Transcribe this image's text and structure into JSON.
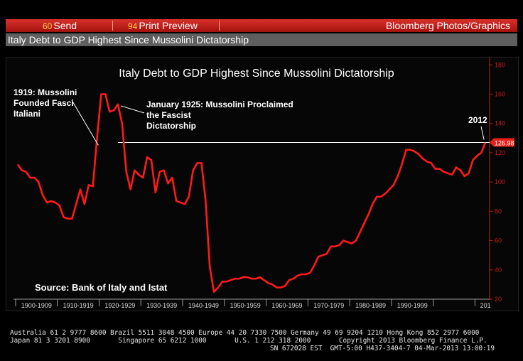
{
  "toolbar": {
    "send_num": "60",
    "send_label": "Send",
    "print_num": "94",
    "print_label": "Print Preview",
    "brand": "Bloomberg Photos/Graphics"
  },
  "window_title": "Italy Debt to GDP Highest Since Mussolini Dictatorship",
  "chart_data": {
    "type": "line",
    "title": "Italy Debt to GDP Highest Since Mussolini Dictatorship",
    "xlabel": "",
    "ylabel": "",
    "xlim": [
      1899,
      2013
    ],
    "ylim": [
      20,
      185
    ],
    "yticks": [
      20,
      40,
      60,
      80,
      100,
      120,
      140,
      160,
      180
    ],
    "x_tick_labels": [
      "1900-1909",
      "1910-1919",
      "1920-1929",
      "1930-1939",
      "1940-1949",
      "1950-1959",
      "1960-1969",
      "1970-1979",
      "1980-1989",
      "1990-1999",
      "201"
    ],
    "grid": false,
    "line_color": "#ff1a1a",
    "reference_line": {
      "value": 126.98,
      "label": "126.98",
      "color": "#ffffff"
    },
    "series": [
      {
        "x": [
          1900,
          1901,
          1902,
          1903,
          1904,
          1905,
          1906,
          1907,
          1908,
          1909,
          1910,
          1911,
          1912,
          1913,
          1914,
          1915,
          1916,
          1917,
          1918,
          1919,
          1920,
          1921,
          1922,
          1923,
          1924,
          1925,
          1926,
          1927,
          1928,
          1929,
          1930,
          1931,
          1932,
          1933,
          1934,
          1935,
          1936,
          1937,
          1938,
          1939,
          1940,
          1941,
          1942,
          1943,
          1944,
          1945,
          1946,
          1947,
          1948,
          1949,
          1950,
          1951,
          1952,
          1953,
          1954,
          1955,
          1956,
          1957,
          1958,
          1959,
          1960,
          1961,
          1962,
          1963,
          1964,
          1965,
          1966,
          1967,
          1968,
          1969,
          1970,
          1971,
          1972,
          1973,
          1974,
          1975,
          1976,
          1977,
          1978,
          1979,
          1980,
          1981,
          1982,
          1983,
          1984,
          1985,
          1986,
          1987,
          1988,
          1989,
          1990,
          1991,
          1992,
          1993,
          1994,
          1995,
          1996,
          1997,
          1998,
          1999,
          2000,
          2001,
          2002,
          2003,
          2004,
          2005,
          2006,
          2007,
          2008,
          2009,
          2010,
          2011,
          2012
        ],
        "values": [
          112,
          108,
          107,
          103,
          103,
          100,
          91,
          86,
          87,
          86,
          84,
          76,
          75,
          75,
          85,
          95,
          85,
          98,
          97,
          130,
          160,
          160,
          148,
          149,
          153,
          140,
          107,
          95,
          108,
          105,
          103,
          117,
          115,
          93,
          107,
          108,
          99,
          103,
          87,
          86,
          85,
          90,
          108,
          113,
          113,
          87,
          42,
          25,
          28,
          32,
          32,
          33,
          34,
          34,
          35,
          35,
          34,
          34,
          35,
          33,
          31,
          30,
          28,
          28,
          29,
          33,
          34,
          36,
          37,
          37,
          38,
          43,
          49,
          50,
          51,
          56,
          56,
          57,
          60,
          59,
          58,
          60,
          66,
          72,
          78,
          85,
          90,
          90,
          92,
          95,
          98,
          104,
          112,
          122,
          122,
          121,
          119,
          116,
          114,
          113,
          109,
          109,
          107,
          106,
          105,
          110,
          108,
          104,
          106,
          115,
          118,
          120,
          126.98
        ]
      }
    ],
    "annotations": [
      {
        "label": "1919: Mussolini Founded Fasci Italiani",
        "x": 1920,
        "y": 128
      },
      {
        "label": "January 1925: Mussolini Proclaimed the Fascist Dictatorship",
        "x": 1924,
        "y": 153
      },
      {
        "label": "2012",
        "x": 2012,
        "y": 127
      }
    ],
    "source_note": "Source: Bank of Italy and Istat"
  },
  "footer": {
    "line1": "Australia 61 2 9777 8600 Brazil 5511 3048 4500 Europe 44 20 7330 7500 Germany 49 69 9204 1210 Hong Kong 852 2977 6000",
    "line2": "Japan 81 3 3201 8900       Singapore 65 6212 1000       U.S. 1 212 318 2000       Copyright 2013 Bloomberg Finance L.P.",
    "line3": "SN 672028 EST  GMT-5:00 H437-3404-7 04-Mar-2013 13:00:19"
  }
}
